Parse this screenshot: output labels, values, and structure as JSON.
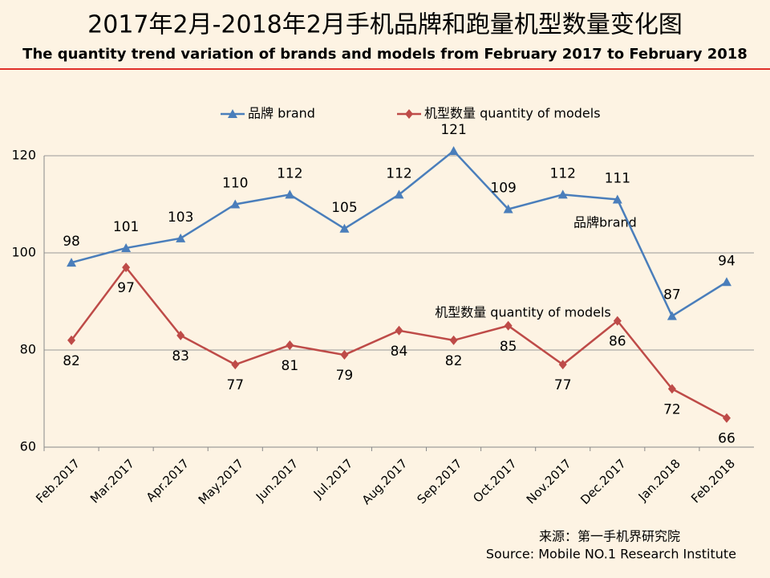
{
  "chart_data": {
    "type": "line",
    "title": "2017年2月-2018年2月手机品牌和跑量机型数量变化图",
    "subtitle": "The quantity trend variation of brands and models from February 2017 to February 2018",
    "categories": [
      "Feb.2017",
      "Mar.2017",
      "Apr.2017",
      "May.2017",
      "Jun.2017",
      "Jul.2017",
      "Aug.2017",
      "Sep.2017",
      "Oct.2017",
      "Nov.2017",
      "Dec.2017",
      "Jan.2018",
      "Feb.2018"
    ],
    "series": [
      {
        "name": "品牌 brand",
        "color": "#4a7ebb",
        "marker": "triangle",
        "values": [
          98,
          101,
          103,
          110,
          112,
          105,
          112,
          121,
          109,
          112,
          111,
          87,
          94
        ]
      },
      {
        "name": "机型数量 quantity of models",
        "color": "#be4b48",
        "marker": "diamond",
        "values": [
          82,
          97,
          83,
          77,
          81,
          79,
          84,
          82,
          85,
          77,
          86,
          72,
          66
        ]
      }
    ],
    "ylim": [
      60,
      120
    ],
    "yticks": [
      60,
      80,
      100,
      120
    ],
    "grid": true,
    "legend": "top",
    "annotations": [
      "品牌brand",
      "机型数量 quantity of models"
    ],
    "source": [
      "来源：第一手机界研究院",
      "Source: Mobile NO.1 Research Institute"
    ]
  }
}
